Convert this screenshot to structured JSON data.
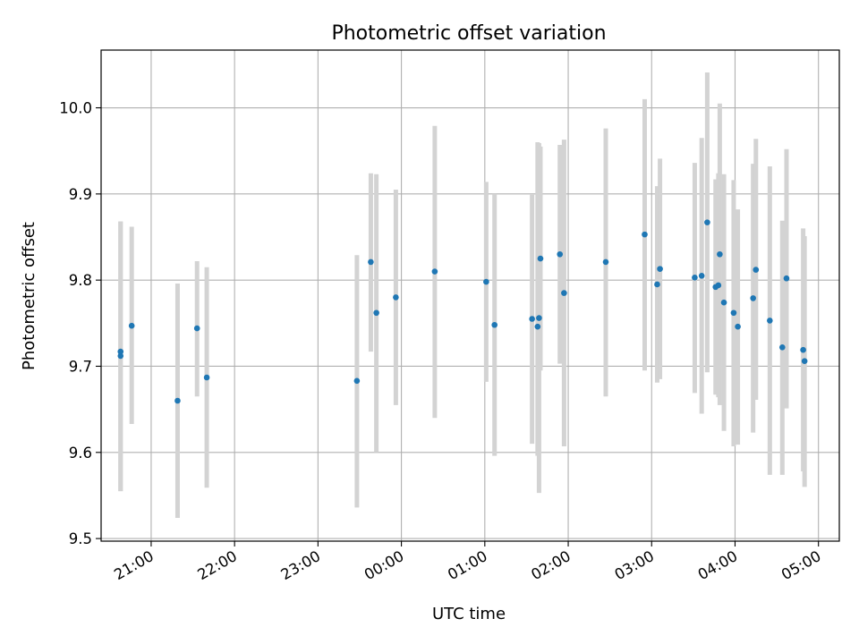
{
  "chart_data": {
    "type": "scatter",
    "title": "Photometric offset variation",
    "xlabel": "UTC time",
    "ylabel": "Photometric offset",
    "grid": true,
    "xlim": [
      "20:24",
      "05:15"
    ],
    "ylim": [
      9.497,
      10.067
    ],
    "x_ticks": [
      "21:00",
      "22:00",
      "23:00",
      "00:00",
      "01:00",
      "02:00",
      "03:00",
      "04:00",
      "05:00"
    ],
    "y_ticks": [
      "9.5",
      "9.6",
      "9.7",
      "9.8",
      "9.9",
      "10.0"
    ],
    "colors": {
      "point": "#1f77b4",
      "errorbar": "#d3d3d3",
      "grid": "#b0b0b0"
    },
    "series": [
      {
        "points": [
          {
            "x": "20:38",
            "y": 9.712,
            "lo": 9.555,
            "hi": 9.868
          },
          {
            "x": "20:38",
            "y": 9.717,
            "lo": 9.555,
            "hi": 9.868
          },
          {
            "x": "20:46",
            "y": 9.747,
            "lo": 9.633,
            "hi": 9.862
          },
          {
            "x": "21:19",
            "y": 9.66,
            "lo": 9.524,
            "hi": 9.796
          },
          {
            "x": "21:33",
            "y": 9.744,
            "lo": 9.665,
            "hi": 9.822
          },
          {
            "x": "21:40",
            "y": 9.687,
            "lo": 9.559,
            "hi": 9.815
          },
          {
            "x": "23:28",
            "y": 9.683,
            "lo": 9.536,
            "hi": 9.829
          },
          {
            "x": "23:38",
            "y": 9.821,
            "lo": 9.717,
            "hi": 9.924
          },
          {
            "x": "23:42",
            "y": 9.762,
            "lo": 9.6,
            "hi": 9.923
          },
          {
            "x": "23:56",
            "y": 9.78,
            "lo": 9.655,
            "hi": 9.905
          },
          {
            "x": "00:24",
            "y": 9.81,
            "lo": 9.64,
            "hi": 9.979
          },
          {
            "x": "01:01",
            "y": 9.798,
            "lo": 9.682,
            "hi": 9.914
          },
          {
            "x": "01:07",
            "y": 9.748,
            "lo": 9.596,
            "hi": 9.9
          },
          {
            "x": "01:34",
            "y": 9.755,
            "lo": 9.61,
            "hi": 9.899
          },
          {
            "x": "01:38",
            "y": 9.746,
            "lo": 9.596,
            "hi": 9.96
          },
          {
            "x": "01:39",
            "y": 9.756,
            "lo": 9.553,
            "hi": 9.959
          },
          {
            "x": "01:40",
            "y": 9.825,
            "lo": 9.695,
            "hi": 9.955
          },
          {
            "x": "01:54",
            "y": 9.83,
            "lo": 9.703,
            "hi": 9.957
          },
          {
            "x": "01:57",
            "y": 9.785,
            "lo": 9.607,
            "hi": 9.963
          },
          {
            "x": "02:27",
            "y": 9.821,
            "lo": 9.665,
            "hi": 9.976
          },
          {
            "x": "02:55",
            "y": 9.853,
            "lo": 9.695,
            "hi": 10.01
          },
          {
            "x": "03:04",
            "y": 9.795,
            "lo": 9.681,
            "hi": 9.909
          },
          {
            "x": "03:06",
            "y": 9.813,
            "lo": 9.685,
            "hi": 9.941
          },
          {
            "x": "03:31",
            "y": 9.803,
            "lo": 9.669,
            "hi": 9.936
          },
          {
            "x": "03:36",
            "y": 9.805,
            "lo": 9.645,
            "hi": 9.965
          },
          {
            "x": "03:40",
            "y": 9.867,
            "lo": 9.693,
            "hi": 10.041
          },
          {
            "x": "03:46",
            "y": 9.792,
            "lo": 9.667,
            "hi": 9.917
          },
          {
            "x": "03:48",
            "y": 9.794,
            "lo": 9.664,
            "hi": 9.924
          },
          {
            "x": "03:49",
            "y": 9.83,
            "lo": 9.655,
            "hi": 10.005
          },
          {
            "x": "03:52",
            "y": 9.774,
            "lo": 9.625,
            "hi": 9.923
          },
          {
            "x": "03:59",
            "y": 9.762,
            "lo": 9.607,
            "hi": 9.916
          },
          {
            "x": "04:02",
            "y": 9.746,
            "lo": 9.609,
            "hi": 9.882
          },
          {
            "x": "04:13",
            "y": 9.779,
            "lo": 9.623,
            "hi": 9.935
          },
          {
            "x": "04:15",
            "y": 9.812,
            "lo": 9.661,
            "hi": 9.964
          },
          {
            "x": "04:25",
            "y": 9.753,
            "lo": 9.574,
            "hi": 9.932
          },
          {
            "x": "04:34",
            "y": 9.722,
            "lo": 9.574,
            "hi": 9.869
          },
          {
            "x": "04:37",
            "y": 9.802,
            "lo": 9.651,
            "hi": 9.952
          },
          {
            "x": "04:49",
            "y": 9.719,
            "lo": 9.578,
            "hi": 9.86
          },
          {
            "x": "04:50",
            "y": 9.706,
            "lo": 9.56,
            "hi": 9.851
          }
        ]
      }
    ]
  }
}
